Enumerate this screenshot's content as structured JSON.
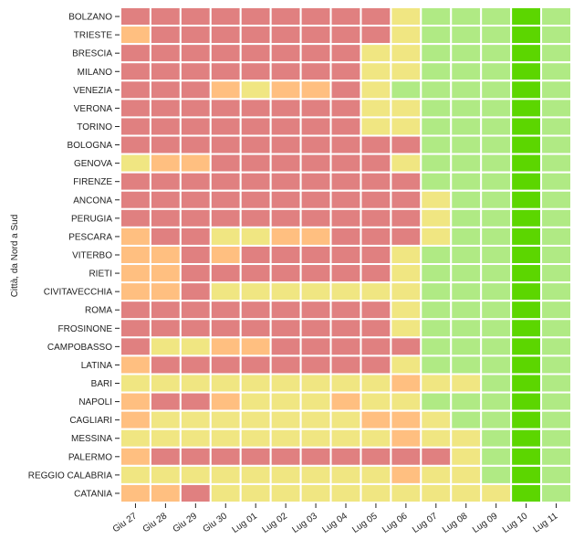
{
  "chart_data": {
    "type": "heatmap",
    "title": "",
    "ylabel": "Città, da Nord a Sud",
    "xlabel": "",
    "x": [
      "Giu 27",
      "Giu 28",
      "Giu 29",
      "Giu 30",
      "Lug 01",
      "Lug 02",
      "Lug 03",
      "Lug 04",
      "Lug 05",
      "Lug 06",
      "Lug 07",
      "Lug 08",
      "Lug 09",
      "Lug 10",
      "Lug 11"
    ],
    "y": [
      "BOLZANO",
      "TRIESTE",
      "BRESCIA",
      "MILANO",
      "VENEZIA",
      "VERONA",
      "TORINO",
      "BOLOGNA",
      "GENOVA",
      "FIRENZE",
      "ANCONA",
      "PERUGIA",
      "PESCARA",
      "VITERBO",
      "RIETI",
      "CIVITAVECCHIA",
      "ROMA",
      "FROSINONE",
      "CAMPOBASSO",
      "LATINA",
      "BARI",
      "NAPOLI",
      "CAGLIARI",
      "MESSINA",
      "PALERMO",
      "REGGIO CALABRIA",
      "CATANIA"
    ],
    "level_scale": {
      "0": "#5cd600",
      "1": "#b0ea84",
      "2": "#f0e682",
      "3": "#ffbf80",
      "4": "#e08080"
    },
    "values": [
      [
        4,
        4,
        4,
        4,
        4,
        4,
        4,
        4,
        4,
        2,
        1,
        1,
        1,
        0,
        1
      ],
      [
        3,
        4,
        4,
        4,
        4,
        4,
        4,
        4,
        4,
        2,
        1,
        1,
        1,
        0,
        1
      ],
      [
        4,
        4,
        4,
        4,
        4,
        4,
        4,
        4,
        2,
        2,
        1,
        1,
        1,
        0,
        1
      ],
      [
        4,
        4,
        4,
        4,
        4,
        4,
        4,
        4,
        2,
        2,
        1,
        1,
        1,
        0,
        1
      ],
      [
        4,
        4,
        4,
        3,
        2,
        3,
        3,
        4,
        2,
        1,
        1,
        1,
        1,
        0,
        1
      ],
      [
        4,
        4,
        4,
        4,
        4,
        4,
        4,
        4,
        2,
        2,
        1,
        1,
        1,
        0,
        1
      ],
      [
        4,
        4,
        4,
        4,
        4,
        4,
        4,
        4,
        2,
        2,
        1,
        1,
        1,
        0,
        1
      ],
      [
        4,
        4,
        4,
        4,
        4,
        4,
        4,
        4,
        4,
        4,
        1,
        1,
        1,
        0,
        1
      ],
      [
        2,
        3,
        3,
        4,
        4,
        4,
        4,
        4,
        4,
        2,
        1,
        1,
        1,
        0,
        1
      ],
      [
        4,
        4,
        4,
        4,
        4,
        4,
        4,
        4,
        4,
        4,
        1,
        1,
        1,
        0,
        1
      ],
      [
        4,
        4,
        4,
        4,
        4,
        4,
        4,
        4,
        4,
        4,
        2,
        1,
        1,
        0,
        1
      ],
      [
        4,
        4,
        4,
        4,
        4,
        4,
        4,
        4,
        4,
        4,
        2,
        1,
        1,
        0,
        1
      ],
      [
        3,
        4,
        4,
        2,
        2,
        3,
        3,
        4,
        4,
        4,
        2,
        1,
        1,
        0,
        1
      ],
      [
        3,
        3,
        4,
        3,
        4,
        4,
        4,
        4,
        4,
        2,
        1,
        1,
        1,
        0,
        1
      ],
      [
        3,
        3,
        4,
        4,
        4,
        4,
        4,
        4,
        4,
        2,
        1,
        1,
        1,
        0,
        1
      ],
      [
        3,
        3,
        4,
        2,
        2,
        2,
        2,
        2,
        2,
        2,
        1,
        1,
        1,
        0,
        1
      ],
      [
        4,
        4,
        4,
        4,
        4,
        4,
        4,
        4,
        4,
        2,
        1,
        1,
        1,
        0,
        1
      ],
      [
        4,
        4,
        4,
        4,
        4,
        4,
        4,
        4,
        4,
        2,
        1,
        1,
        1,
        0,
        1
      ],
      [
        4,
        2,
        2,
        3,
        3,
        4,
        4,
        4,
        4,
        4,
        1,
        1,
        1,
        0,
        1
      ],
      [
        3,
        4,
        4,
        4,
        4,
        4,
        4,
        4,
        4,
        2,
        1,
        1,
        1,
        0,
        1
      ],
      [
        2,
        2,
        2,
        2,
        2,
        2,
        2,
        2,
        2,
        3,
        2,
        2,
        1,
        0,
        1
      ],
      [
        3,
        4,
        4,
        3,
        2,
        2,
        2,
        3,
        2,
        2,
        1,
        1,
        1,
        0,
        1
      ],
      [
        3,
        2,
        2,
        2,
        2,
        2,
        2,
        2,
        3,
        3,
        2,
        1,
        1,
        0,
        1
      ],
      [
        2,
        2,
        2,
        2,
        2,
        2,
        2,
        2,
        2,
        3,
        2,
        2,
        1,
        0,
        1
      ],
      [
        3,
        4,
        4,
        4,
        4,
        4,
        4,
        4,
        4,
        4,
        4,
        2,
        1,
        0,
        1
      ],
      [
        2,
        2,
        2,
        2,
        2,
        2,
        2,
        2,
        2,
        3,
        2,
        2,
        1,
        0,
        1
      ],
      [
        3,
        3,
        4,
        2,
        2,
        2,
        2,
        2,
        2,
        2,
        2,
        2,
        2,
        0,
        1
      ]
    ]
  }
}
